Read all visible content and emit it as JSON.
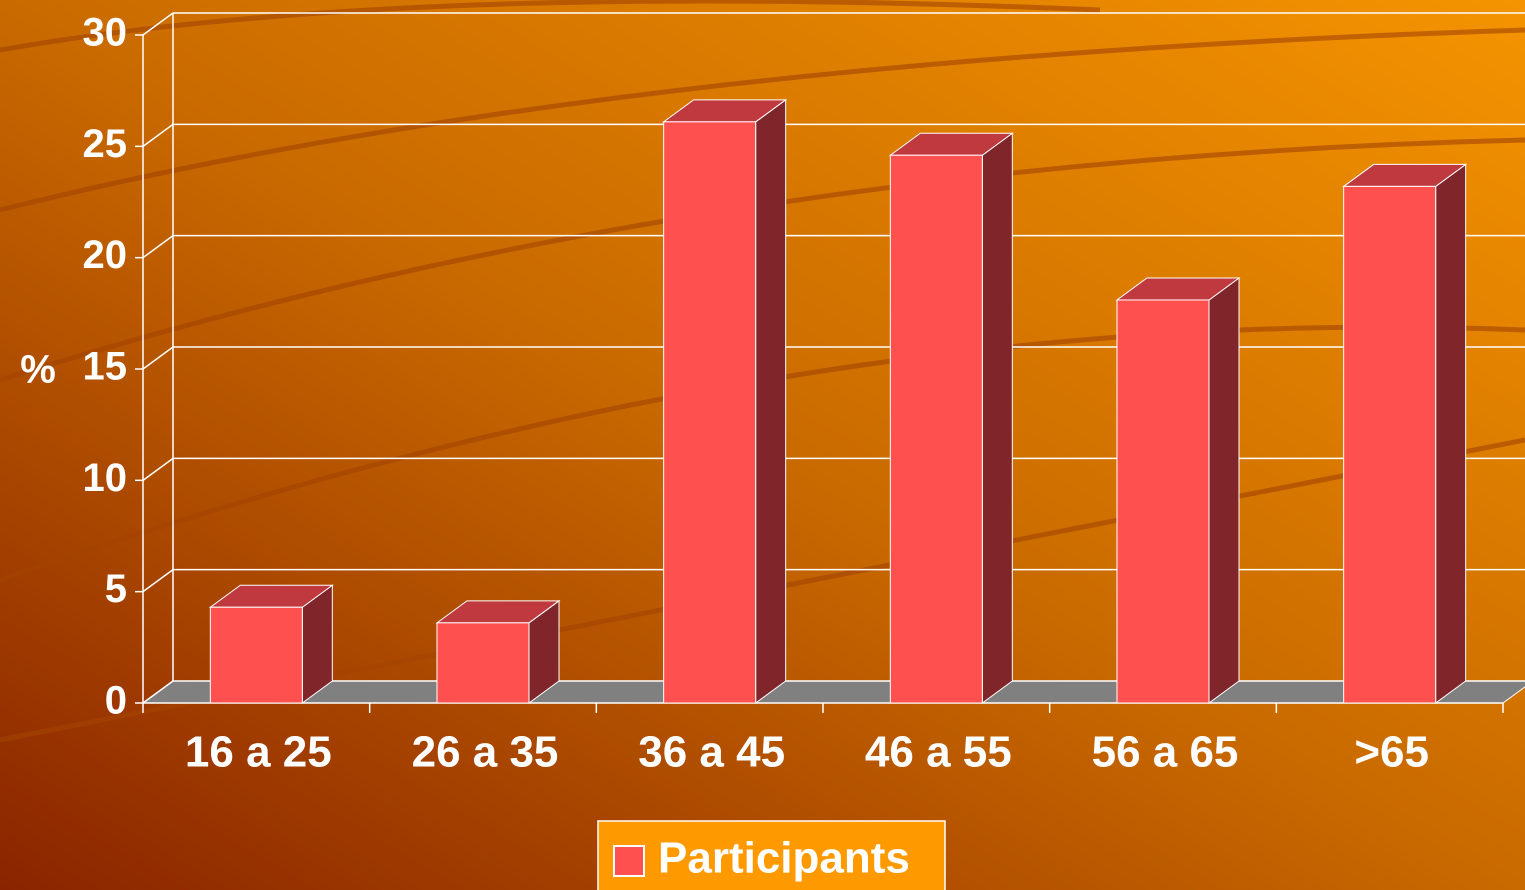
{
  "chart_data": {
    "type": "bar3d",
    "y_label": "%",
    "categories": [
      "16 a 25",
      "26 a 35",
      "36 a 45",
      "46 a 55",
      "56 a 65",
      ">65"
    ],
    "series": [
      {
        "name": "Participants",
        "color": "#ff5050",
        "values": [
          4.3,
          3.6,
          26.1,
          24.6,
          18.1,
          23.2
        ]
      }
    ],
    "ylim": [
      0,
      30
    ],
    "yticks": [
      0,
      5,
      10,
      15,
      20,
      25,
      30
    ],
    "grid": true,
    "legend": "bottom"
  }
}
